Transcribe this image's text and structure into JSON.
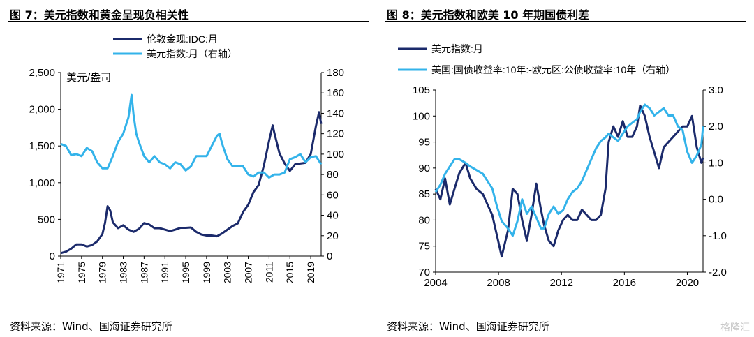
{
  "watermark": "格隆汇",
  "charts": [
    {
      "figure_title": "图 7：美元指数和黄金呈现负相关性",
      "source": "资料来源：Wind、国海证券研究所",
      "unit_label": "美元/盎司",
      "legend": [
        "伦敦金现:IDC:月",
        "美元指数:月（右轴）"
      ],
      "colors": [
        "#1b2a6b",
        "#33b3ea"
      ]
    },
    {
      "figure_title": "图 8：美元指数和欧美 10 年期国债利差",
      "source": "资料来源：Wind、国海证券研究所",
      "unit_label": "",
      "legend": [
        "美元指数:月",
        "美国:国债收益率:10年:-欧元区:公债收益率:10年（右轴）"
      ],
      "colors": [
        "#1b2a6b",
        "#33b3ea"
      ]
    }
  ],
  "chart_data": [
    {
      "type": "line",
      "title": "图 7：美元指数和黄金呈现负相关性",
      "ylabel": "美元/盎司",
      "x_ticks": [
        "1971",
        "1975",
        "1979",
        "1983",
        "1987",
        "1991",
        "1995",
        "1999",
        "2003",
        "2007",
        "2011",
        "2015",
        "2019"
      ],
      "xlim": [
        1971,
        2021
      ],
      "ylim": [
        0,
        2500
      ],
      "y_ticks": [
        "0",
        "500",
        "1,000",
        "1,500",
        "2,000",
        "2,500"
      ],
      "y2lim": [
        0,
        180
      ],
      "y2_ticks": [
        "0",
        "20",
        "40",
        "60",
        "80",
        "100",
        "120",
        "140",
        "160",
        "180"
      ],
      "legend_position": "top",
      "series": [
        {
          "name": "伦敦金现:IDC:月",
          "axis": "left",
          "x": [
            1971,
            1972,
            1973,
            1974,
            1975,
            1976,
            1977,
            1978,
            1979,
            1979.5,
            1980,
            1980.5,
            1981,
            1982,
            1983,
            1984,
            1985,
            1986,
            1987,
            1988,
            1989,
            1990,
            1991,
            1992,
            1993,
            1994,
            1995,
            1996,
            1997,
            1998,
            1999,
            2000,
            2001,
            2002,
            2003,
            2004,
            2005,
            2006,
            2007,
            2008,
            2009,
            2010,
            2011,
            2011.7,
            2012,
            2013,
            2014,
            2015,
            2016,
            2017,
            2018,
            2019,
            2020,
            2020.6,
            2021
          ],
          "values": [
            40,
            60,
            100,
            160,
            160,
            130,
            150,
            200,
            300,
            450,
            680,
            620,
            460,
            380,
            420,
            360,
            330,
            370,
            450,
            430,
            380,
            380,
            360,
            340,
            360,
            385,
            385,
            390,
            330,
            295,
            280,
            280,
            270,
            310,
            360,
            410,
            445,
            600,
            700,
            870,
            970,
            1230,
            1570,
            1780,
            1680,
            1400,
            1260,
            1160,
            1250,
            1260,
            1270,
            1390,
            1770,
            1960,
            1800
          ]
        },
        {
          "name": "美元指数:月（右轴）",
          "axis": "right",
          "x": [
            1971,
            1972,
            1973,
            1974,
            1975,
            1976,
            1977,
            1978,
            1979,
            1980,
            1981,
            1982,
            1983,
            1984,
            1984.6,
            1985,
            1985.5,
            1986,
            1987,
            1988,
            1989,
            1990,
            1991,
            1992,
            1993,
            1994,
            1995,
            1996,
            1997,
            1998,
            1999,
            2000,
            2001,
            2001.5,
            2002,
            2003,
            2004,
            2005,
            2006,
            2007,
            2008,
            2009,
            2010,
            2011,
            2012,
            2013,
            2014,
            2015,
            2016,
            2017,
            2018,
            2019,
            2020,
            2021
          ],
          "values": [
            110,
            108,
            99,
            100,
            98,
            106,
            103,
            92,
            86,
            86,
            98,
            112,
            120,
            136,
            158,
            138,
            120,
            112,
            98,
            92,
            98,
            92,
            90,
            86,
            92,
            90,
            84,
            88,
            98,
            98,
            98,
            108,
            118,
            120,
            110,
            95,
            88,
            88,
            88,
            80,
            78,
            82,
            82,
            77,
            80,
            80,
            82,
            95,
            97,
            100,
            92,
            97,
            98,
            90
          ]
        }
      ]
    },
    {
      "type": "line",
      "title": "图 8：美元指数和欧美 10 年期国债利差",
      "x_ticks": [
        "2004",
        "2008",
        "2012",
        "2016",
        "2020"
      ],
      "xlim": [
        2004,
        2021
      ],
      "ylim": [
        70,
        105
      ],
      "y_ticks": [
        "70",
        "75",
        "80",
        "85",
        "90",
        "95",
        "100",
        "105"
      ],
      "y2lim": [
        -2,
        3
      ],
      "y2_ticks": [
        "-2.0",
        "-1.0",
        "0.0",
        "1.0",
        "2.0",
        "3.0"
      ],
      "legend_position": "top",
      "series": [
        {
          "name": "美元指数:月",
          "axis": "left",
          "x": [
            2004,
            2004.3,
            2004.6,
            2004.9,
            2005.2,
            2005.5,
            2005.9,
            2006.2,
            2006.6,
            2007.0,
            2007.3,
            2007.6,
            2007.9,
            2008.2,
            2008.6,
            2008.9,
            2009.2,
            2009.5,
            2009.8,
            2010.1,
            2010.4,
            2010.7,
            2010.9,
            2011.2,
            2011.5,
            2011.8,
            2012.1,
            2012.4,
            2012.7,
            2013.0,
            2013.3,
            2013.6,
            2013.9,
            2014.2,
            2014.5,
            2014.8,
            2015.0,
            2015.3,
            2015.6,
            2015.9,
            2016.2,
            2016.5,
            2016.8,
            2017.0,
            2017.3,
            2017.6,
            2017.9,
            2018.2,
            2018.5,
            2018.8,
            2019.1,
            2019.4,
            2019.7,
            2020.0,
            2020.3,
            2020.6,
            2020.9,
            2021.0
          ],
          "values": [
            86,
            84,
            88,
            83,
            86,
            89,
            91,
            88,
            86,
            85,
            83,
            81,
            77,
            73,
            78,
            86,
            85,
            80,
            76,
            81,
            87,
            82,
            79,
            76,
            75,
            78,
            80,
            81,
            80,
            80,
            82,
            81,
            80,
            80,
            81,
            86,
            95,
            98,
            96,
            99,
            96,
            96,
            98,
            102,
            100,
            96,
            93,
            90,
            94,
            95,
            96,
            97,
            98,
            98,
            100,
            94,
            91,
            92
          ]
        },
        {
          "name": "美国:国债收益率:10年:-欧元区:公债收益率:10年（右轴）",
          "axis": "right",
          "x": [
            2004,
            2004.3,
            2004.6,
            2004.9,
            2005.2,
            2005.5,
            2005.9,
            2006.2,
            2006.6,
            2007.0,
            2007.3,
            2007.6,
            2007.9,
            2008.2,
            2008.6,
            2008.9,
            2009.2,
            2009.5,
            2009.8,
            2010.1,
            2010.4,
            2010.7,
            2010.9,
            2011.2,
            2011.5,
            2011.8,
            2012.1,
            2012.4,
            2012.7,
            2013.0,
            2013.3,
            2013.6,
            2013.9,
            2014.2,
            2014.5,
            2014.8,
            2015.0,
            2015.3,
            2015.6,
            2015.9,
            2016.2,
            2016.5,
            2016.8,
            2017.0,
            2017.3,
            2017.6,
            2017.9,
            2018.2,
            2018.5,
            2018.8,
            2019.1,
            2019.4,
            2019.7,
            2020.0,
            2020.3,
            2020.6,
            2020.9,
            2021.0
          ],
          "values": [
            0.2,
            0.4,
            0.7,
            0.9,
            1.1,
            1.1,
            1.0,
            0.9,
            0.8,
            0.7,
            0.5,
            0.3,
            -0.2,
            -0.6,
            -0.8,
            -1.0,
            -0.6,
            0.0,
            -0.4,
            -0.2,
            -0.5,
            -0.8,
            -0.8,
            -0.4,
            -0.2,
            -0.4,
            -0.3,
            0.0,
            0.2,
            0.3,
            0.5,
            0.8,
            1.1,
            1.4,
            1.6,
            1.7,
            1.8,
            1.7,
            1.6,
            1.8,
            2.0,
            2.1,
            2.2,
            2.4,
            2.6,
            2.5,
            2.3,
            2.4,
            2.5,
            2.3,
            2.3,
            2.0,
            1.9,
            1.3,
            1.0,
            1.2,
            1.5,
            2.0
          ]
        }
      ]
    }
  ]
}
